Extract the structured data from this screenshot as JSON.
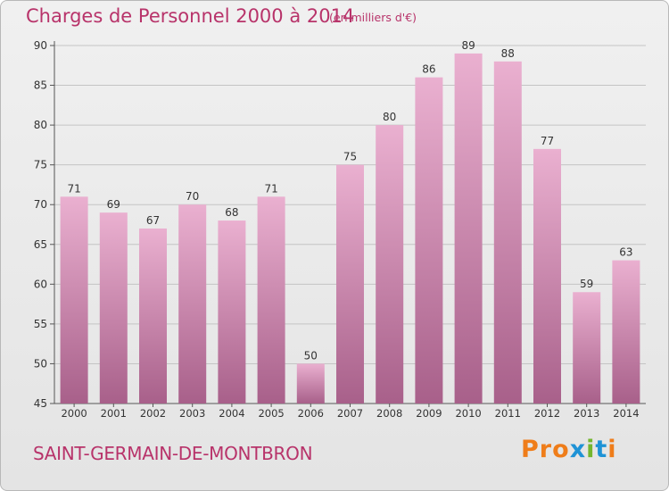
{
  "header": {
    "title": "Charges de Personnel 2000 à 2014",
    "unit": "(en milliers d'€)"
  },
  "footer": {
    "commune": "SAINT-GERMAIN-DE-MONTBRON",
    "brand": "Proxiti"
  },
  "colors": {
    "title": "#b8336a",
    "bar_top": "#eab0d0",
    "bar_bottom": "#a8608a",
    "grid": "#c4c4c4",
    "logo_letters": [
      "#ef7d1a",
      "#ef7d1a",
      "#ef7d1a",
      "#1f93d6",
      "#74b62e",
      "#1f93d6",
      "#ef7d1a"
    ]
  },
  "chart_data": {
    "type": "bar",
    "title": "Charges de Personnel 2000 à 2014",
    "categories": [
      "2000",
      "2001",
      "2002",
      "2003",
      "2004",
      "2005",
      "2006",
      "2007",
      "2008",
      "2009",
      "2010",
      "2011",
      "2012",
      "2013",
      "2014"
    ],
    "values": [
      71,
      69,
      67,
      70,
      68,
      71,
      50,
      75,
      80,
      86,
      89,
      88,
      77,
      59,
      63
    ],
    "ylim": [
      45,
      90
    ],
    "yticks": [
      45,
      50,
      55,
      60,
      65,
      70,
      75,
      80,
      85,
      90
    ],
    "grid": true,
    "data_labels": true
  }
}
